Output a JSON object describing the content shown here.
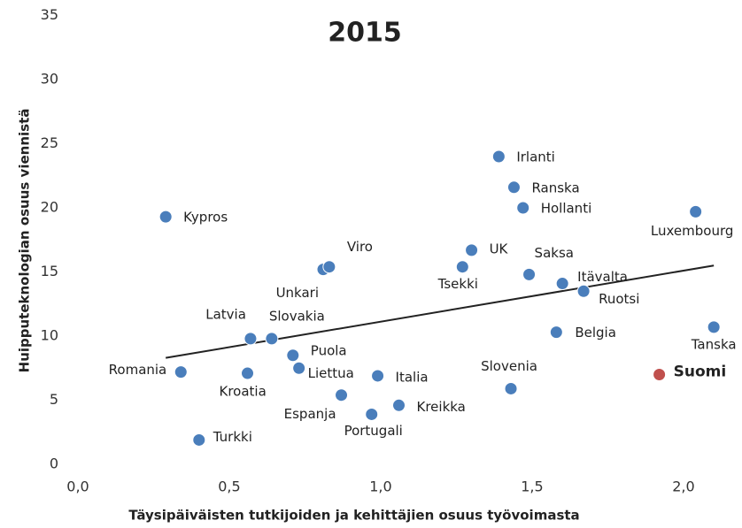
{
  "chart_data": {
    "type": "scatter",
    "title": "2015",
    "xlabel": "Täysipäiväisten tutkijoiden ja kehittäjien osuus työvoimasta",
    "ylabel": "Huipputeknologian osuus viennistä",
    "xlim": [
      0,
      2.12
    ],
    "ylim": [
      0,
      35
    ],
    "xticks": [
      {
        "value": 0,
        "label": "0,0"
      },
      {
        "value": 0.5,
        "label": "0,5"
      },
      {
        "value": 1,
        "label": "1,0"
      },
      {
        "value": 1.5,
        "label": "1,5"
      },
      {
        "value": 2,
        "label": "2,0"
      }
    ],
    "yticks": [
      0,
      5,
      10,
      15,
      20,
      25,
      30,
      35
    ],
    "color": "#4a7ebb",
    "points": [
      {
        "label": "Kypros",
        "x": 0.29,
        "y": 19.3
      },
      {
        "label": "Romania",
        "x": 0.34,
        "y": 7.2
      },
      {
        "label": "Turkki",
        "x": 0.4,
        "y": 1.9
      },
      {
        "label": "Kroatia",
        "x": 0.56,
        "y": 7.1
      },
      {
        "label": "Latvia",
        "x": 0.57,
        "y": 9.8
      },
      {
        "label": "Slovakia",
        "x": 0.64,
        "y": 9.8
      },
      {
        "label": "Puola",
        "x": 0.71,
        "y": 8.5
      },
      {
        "label": "Liettua",
        "x": 0.73,
        "y": 7.5
      },
      {
        "label": "Unkari",
        "x": 0.81,
        "y": 15.2
      },
      {
        "label": "Viro",
        "x": 0.83,
        "y": 15.4
      },
      {
        "label": "Espanja",
        "x": 0.87,
        "y": 5.4
      },
      {
        "label": "Italia",
        "x": 0.99,
        "y": 6.9
      },
      {
        "label": "Portugali",
        "x": 0.97,
        "y": 3.9
      },
      {
        "label": "Kreikka",
        "x": 1.06,
        "y": 4.6
      },
      {
        "label": "Tsekki",
        "x": 1.27,
        "y": 15.4
      },
      {
        "label": "UK",
        "x": 1.3,
        "y": 16.7
      },
      {
        "label": "Irlanti",
        "x": 1.39,
        "y": 24.0
      },
      {
        "label": "Ranska",
        "x": 1.44,
        "y": 21.6
      },
      {
        "label": "Hollanti",
        "x": 1.47,
        "y": 20.0
      },
      {
        "label": "Slovenia",
        "x": 1.43,
        "y": 5.9
      },
      {
        "label": "Saksa",
        "x": 1.49,
        "y": 14.8
      },
      {
        "label": "Belgia",
        "x": 1.58,
        "y": 10.3
      },
      {
        "label": "Itävalta",
        "x": 1.6,
        "y": 14.1
      },
      {
        "label": "Ruotsi",
        "x": 1.67,
        "y": 13.5
      },
      {
        "label": "Suomi",
        "x": 1.92,
        "y": 7.0,
        "color": "#c0504d",
        "bold": true
      },
      {
        "label": "Luxembourg",
        "x": 2.04,
        "y": 19.7
      },
      {
        "label": "Tanska",
        "x": 2.1,
        "y": 10.7
      }
    ],
    "trendline": {
      "x": [
        0.29,
        2.1
      ],
      "y": [
        8.3,
        15.5
      ],
      "color": "#222222"
    }
  }
}
